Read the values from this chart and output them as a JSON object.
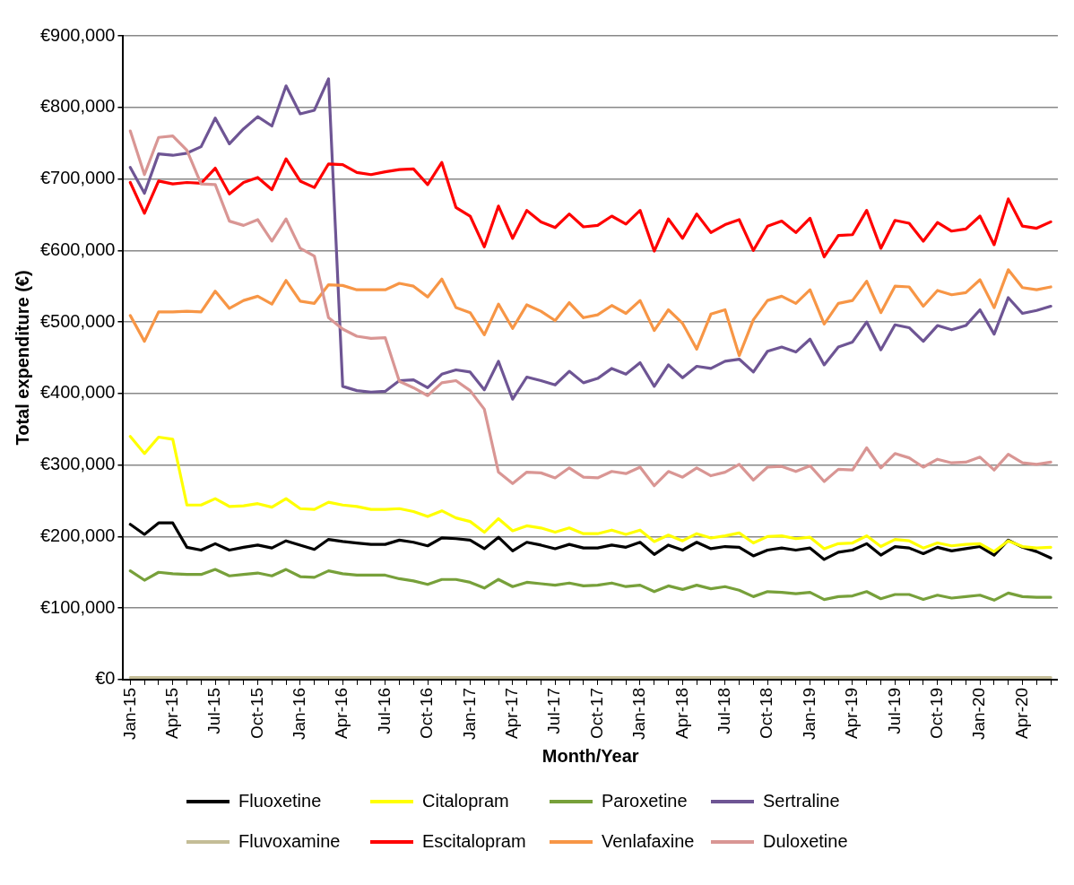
{
  "chart_data": {
    "type": "line",
    "xlabel": "Month/Year",
    "ylabel": "Total expenditure (€)",
    "categories": [
      "Jan-15",
      null,
      null,
      "Apr-15",
      null,
      null,
      "Jul-15",
      null,
      null,
      "Oct-15",
      null,
      null,
      "Jan-16",
      null,
      null,
      "Apr-16",
      null,
      null,
      "Jul-16",
      null,
      null,
      "Oct-16",
      null,
      null,
      "Jan-17",
      null,
      null,
      "Apr-17",
      null,
      null,
      "Jul-17",
      null,
      null,
      "Oct-17",
      null,
      null,
      "Jan-18",
      null,
      null,
      "Apr-18",
      null,
      null,
      "Jul-18",
      null,
      null,
      "Oct-18",
      null,
      null,
      "Jan-19",
      null,
      null,
      "Apr-19",
      null,
      null,
      "Jul-19",
      null,
      null,
      "Oct-19",
      null,
      null,
      "Jan-20",
      null,
      null,
      "Apr-20",
      null,
      null
    ],
    "ylim": [
      0,
      900000
    ],
    "yticks": [
      {
        "value": 0,
        "label": "€0"
      },
      {
        "value": 100000,
        "label": "€100,000"
      },
      {
        "value": 200000,
        "label": "€200,000"
      },
      {
        "value": 300000,
        "label": "€300,000"
      },
      {
        "value": 400000,
        "label": "€400,000"
      },
      {
        "value": 500000,
        "label": "€500,000"
      },
      {
        "value": 600000,
        "label": "€600,000"
      },
      {
        "value": 700000,
        "label": "€700,000"
      },
      {
        "value": 800000,
        "label": "€800,000"
      },
      {
        "value": 900000,
        "label": "€900,000"
      }
    ],
    "grid": "y",
    "legend": "bottom",
    "marker": "none",
    "line_style": "solid",
    "series": [
      {
        "name": "Fluoxetine",
        "color": "#000000",
        "values": [
          217000,
          203000,
          219000,
          219000,
          185000,
          181000,
          190000,
          181000,
          185000,
          188000,
          184000,
          194000,
          188000,
          182000,
          196000,
          193000,
          191000,
          189000,
          189000,
          195000,
          192000,
          187000,
          198000,
          197000,
          195000,
          183000,
          199000,
          180000,
          192000,
          188000,
          183000,
          189000,
          184000,
          184000,
          188000,
          185000,
          192000,
          175000,
          188000,
          181000,
          192000,
          183000,
          186000,
          185000,
          173000,
          181000,
          184000,
          181000,
          184000,
          168000,
          178000,
          181000,
          190000,
          174000,
          186000,
          184000,
          176000,
          185000,
          180000,
          183000,
          186000,
          174000,
          195000,
          185000,
          179000,
          170000
        ]
      },
      {
        "name": "Citalopram",
        "color": "#ffff00",
        "values": [
          340000,
          316000,
          339000,
          336000,
          244000,
          244000,
          253000,
          242000,
          243000,
          246000,
          241000,
          253000,
          239000,
          238000,
          248000,
          244000,
          242000,
          238000,
          238000,
          239000,
          235000,
          228000,
          236000,
          226000,
          221000,
          206000,
          225000,
          208000,
          215000,
          212000,
          206000,
          212000,
          204000,
          204000,
          209000,
          203000,
          209000,
          193000,
          202000,
          194000,
          204000,
          198000,
          201000,
          205000,
          191000,
          200000,
          201000,
          197000,
          199000,
          183000,
          190000,
          191000,
          201000,
          186000,
          196000,
          194000,
          184000,
          191000,
          187000,
          189000,
          190000,
          179000,
          194000,
          186000,
          184000,
          185000
        ]
      },
      {
        "name": "Paroxetine",
        "color": "#77a03a",
        "values": [
          152000,
          139000,
          150000,
          148000,
          147000,
          147000,
          154000,
          145000,
          147000,
          149000,
          145000,
          154000,
          144000,
          143000,
          152000,
          148000,
          146000,
          146000,
          146000,
          141000,
          138000,
          133000,
          140000,
          140000,
          136000,
          128000,
          140000,
          130000,
          136000,
          134000,
          132000,
          135000,
          131000,
          132000,
          135000,
          130000,
          132000,
          123000,
          131000,
          126000,
          132000,
          127000,
          130000,
          125000,
          116000,
          123000,
          122000,
          120000,
          122000,
          112000,
          116000,
          117000,
          123000,
          113000,
          119000,
          119000,
          112000,
          118000,
          114000,
          116000,
          118000,
          111000,
          121000,
          116000,
          115000,
          115000
        ]
      },
      {
        "name": "Sertraline",
        "color": "#6e5594",
        "values": [
          716000,
          680000,
          735000,
          733000,
          736000,
          745000,
          785000,
          749000,
          770000,
          787000,
          774000,
          830000,
          791000,
          796000,
          840000,
          410000,
          404000,
          402000,
          403000,
          418000,
          419000,
          408000,
          427000,
          433000,
          430000,
          405000,
          445000,
          392000,
          423000,
          418000,
          412000,
          431000,
          415000,
          421000,
          435000,
          427000,
          443000,
          410000,
          440000,
          422000,
          438000,
          435000,
          445000,
          448000,
          430000,
          459000,
          465000,
          458000,
          476000,
          440000,
          465000,
          472000,
          500000,
          461000,
          496000,
          492000,
          473000,
          495000,
          489000,
          495000,
          517000,
          483000,
          534000,
          512000,
          516000,
          522000
        ]
      },
      {
        "name": "Fluvoxamine",
        "color": "#c4bd97",
        "values": [
          3000,
          3000,
          3000,
          3000,
          3000,
          3000,
          3000,
          3000,
          3000,
          3000,
          3000,
          3000,
          3000,
          3000,
          3000,
          3000,
          3000,
          3000,
          3000,
          3000,
          3000,
          3000,
          3000,
          3000,
          3000,
          3000,
          3000,
          3000,
          3000,
          3000,
          3000,
          3000,
          3000,
          3000,
          3000,
          3000,
          3000,
          3000,
          3000,
          3000,
          3000,
          3000,
          3000,
          3000,
          3000,
          3000,
          3000,
          3000,
          3000,
          3000,
          3000,
          3000,
          3000,
          3000,
          3000,
          3000,
          3000,
          3000,
          3000,
          3000,
          3000,
          3000,
          3000,
          3000,
          3000,
          3000
        ]
      },
      {
        "name": "Escitalopram",
        "color": "#ff0000",
        "values": [
          695000,
          652000,
          697000,
          693000,
          695000,
          694000,
          715000,
          679000,
          695000,
          702000,
          685000,
          728000,
          697000,
          688000,
          721000,
          720000,
          709000,
          706000,
          710000,
          713000,
          714000,
          692000,
          723000,
          660000,
          648000,
          605000,
          662000,
          617000,
          656000,
          640000,
          632000,
          651000,
          633000,
          635000,
          648000,
          637000,
          656000,
          599000,
          644000,
          617000,
          651000,
          625000,
          636000,
          643000,
          600000,
          634000,
          641000,
          625000,
          645000,
          591000,
          621000,
          622000,
          656000,
          603000,
          642000,
          638000,
          613000,
          639000,
          627000,
          630000,
          648000,
          608000,
          672000,
          634000,
          631000,
          640000
        ]
      },
      {
        "name": "Venlafaxine",
        "color": "#f79646",
        "values": [
          509000,
          473000,
          514000,
          514000,
          515000,
          514000,
          543000,
          519000,
          530000,
          536000,
          525000,
          558000,
          529000,
          526000,
          552000,
          551000,
          545000,
          545000,
          545000,
          554000,
          550000,
          535000,
          560000,
          520000,
          513000,
          482000,
          525000,
          491000,
          524000,
          515000,
          502000,
          527000,
          506000,
          510000,
          523000,
          512000,
          530000,
          488000,
          517000,
          498000,
          462000,
          511000,
          517000,
          453000,
          503000,
          530000,
          536000,
          526000,
          545000,
          497000,
          526000,
          530000,
          557000,
          513000,
          550000,
          549000,
          522000,
          544000,
          538000,
          541000,
          559000,
          520000,
          573000,
          548000,
          545000,
          549000
        ]
      },
      {
        "name": "Duloxetine",
        "color": "#d99694",
        "values": [
          767000,
          706000,
          758000,
          760000,
          740000,
          693000,
          692000,
          641000,
          635000,
          643000,
          613000,
          644000,
          603000,
          592000,
          506000,
          490000,
          480000,
          477000,
          478000,
          417000,
          408000,
          397000,
          415000,
          418000,
          404000,
          378000,
          290000,
          274000,
          290000,
          289000,
          282000,
          296000,
          283000,
          282000,
          291000,
          288000,
          297000,
          271000,
          291000,
          283000,
          296000,
          285000,
          290000,
          301000,
          279000,
          297000,
          298000,
          291000,
          299000,
          277000,
          294000,
          293000,
          324000,
          296000,
          316000,
          310000,
          297000,
          308000,
          303000,
          304000,
          311000,
          293000,
          315000,
          303000,
          301000,
          304000
        ]
      }
    ]
  }
}
